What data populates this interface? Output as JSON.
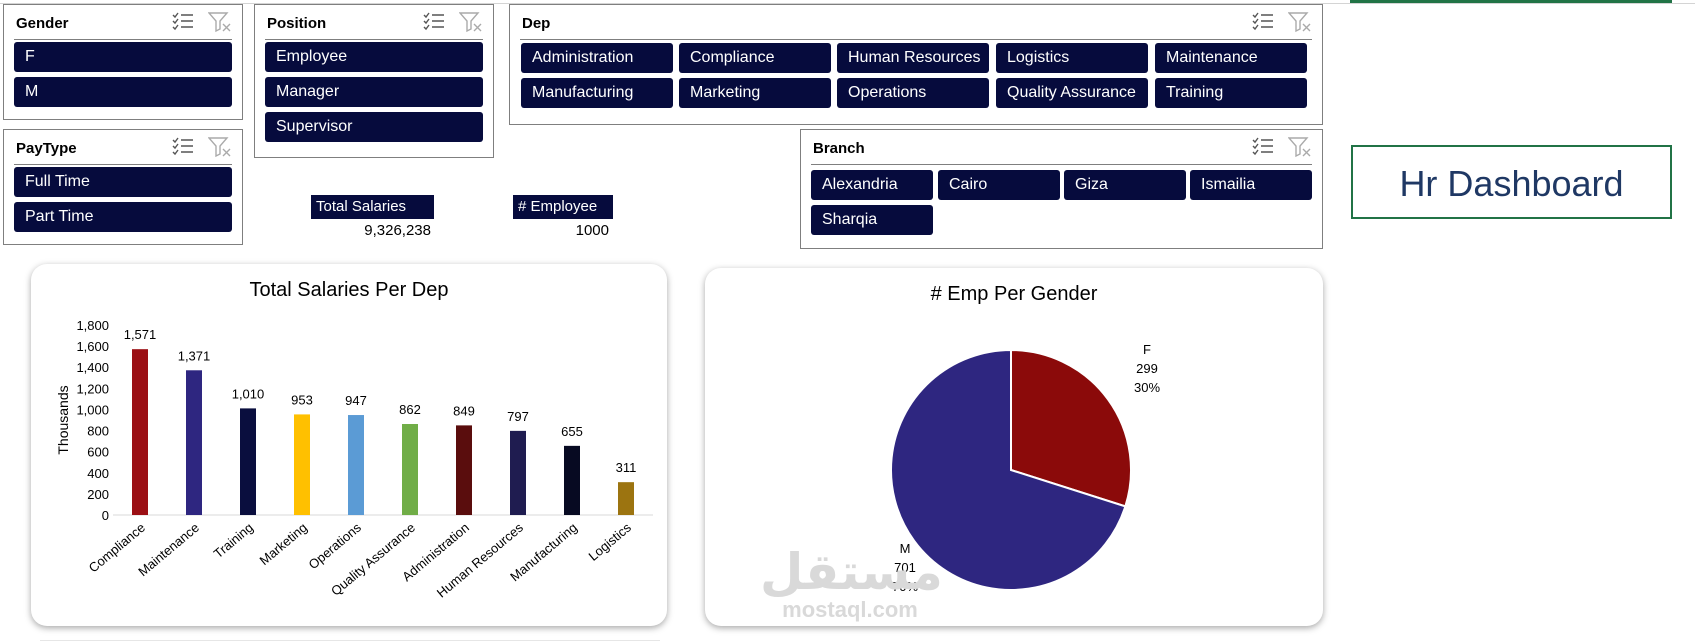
{
  "slicers": {
    "gender": {
      "title": "Gender",
      "items": [
        "F",
        "M"
      ]
    },
    "position": {
      "title": "Position",
      "items": [
        "Employee",
        "Manager",
        "Supervisor"
      ]
    },
    "dep": {
      "title": "Dep",
      "items": [
        "Administration",
        "Compliance",
        "Human Resources",
        "Logistics",
        "Maintenance",
        "Manufacturing",
        "Marketing",
        "Operations",
        "Quality Assurance",
        "Training"
      ]
    },
    "paytype": {
      "title": "PayType",
      "items": [
        "Full Time",
        "Part Time"
      ]
    },
    "branch": {
      "title": "Branch",
      "items": [
        "Alexandria",
        "Cairo",
        "Giza",
        "Ismailia",
        "Sharqia"
      ]
    }
  },
  "kpis": {
    "total_salaries": {
      "label": "Total Salaries",
      "value": "9,326,238"
    },
    "employees": {
      "label": "# Employee",
      "value": "1000"
    }
  },
  "dashboard_title": "Hr Dashboard",
  "colors": {
    "chip": "#060b3d",
    "accent_green": "#217346",
    "title_blue": "#1f3864"
  },
  "chart_data": [
    {
      "type": "bar",
      "title": "Total Salaries Per Dep",
      "ylabel": "Thousands",
      "xlabel": "",
      "categories": [
        "Compliance",
        "Maintenance",
        "Training",
        "Marketing",
        "Operations",
        "Quality Assurance",
        "Administration",
        "Human Resources",
        "Manufacturing",
        "Logistics"
      ],
      "values": [
        1571,
        1371,
        1010,
        953,
        947,
        862,
        849,
        797,
        655,
        311
      ],
      "data_labels": [
        "1,571",
        "1,371",
        "1,010",
        "953",
        "947",
        "862",
        "849",
        "797",
        "655",
        "311"
      ],
      "bar_colors": [
        "#9b0f14",
        "#2e2680",
        "#0a0e3e",
        "#ffc000",
        "#5b9bd5",
        "#70ad47",
        "#5a0d0d",
        "#1f1c50",
        "#070a22",
        "#9c7410"
      ],
      "ylim": [
        0,
        1800
      ],
      "yticks": [
        "0",
        "200",
        "400",
        "600",
        "800",
        "1,000",
        "1,200",
        "1,400",
        "1,600",
        "1,800"
      ],
      "grid": false,
      "legend": "none"
    },
    {
      "type": "pie",
      "title": "# Emp Per Gender",
      "slices": [
        {
          "name": "F",
          "value": 299,
          "label_value": "299",
          "label_pct": "30%",
          "color": "#8b0a0a"
        },
        {
          "name": "M",
          "value": 701,
          "label_value": "701",
          "label_pct": "70%",
          "color": "#2e2680"
        }
      ],
      "legend": "none"
    }
  ],
  "watermark": {
    "arabic": "مستقل",
    "latin": "mostaql.com"
  }
}
